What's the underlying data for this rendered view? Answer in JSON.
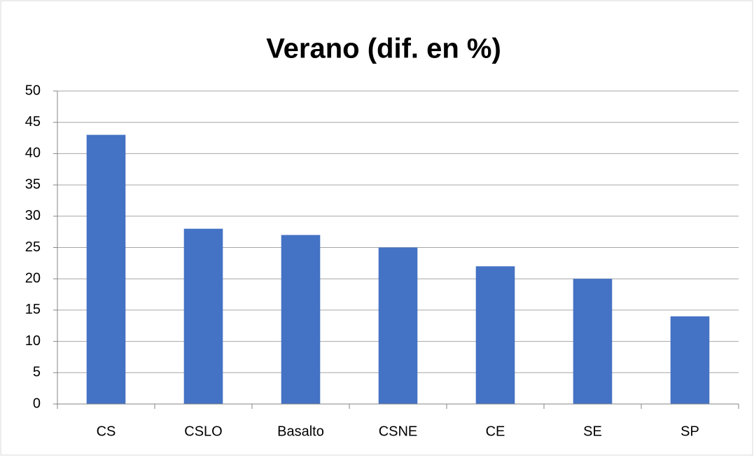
{
  "chart_data": {
    "type": "bar",
    "title": "Verano (dif. en %)",
    "categories": [
      "CS",
      "CSLO",
      "Basalto",
      "CSNE",
      "CE",
      "SE",
      "SP"
    ],
    "values": [
      43,
      28,
      27,
      25,
      22,
      20,
      14
    ],
    "color": "#4472c4",
    "ylim": [
      0,
      50
    ],
    "yticks": [
      0,
      5,
      10,
      15,
      20,
      25,
      30,
      35,
      40,
      45,
      50
    ],
    "grid": true
  }
}
